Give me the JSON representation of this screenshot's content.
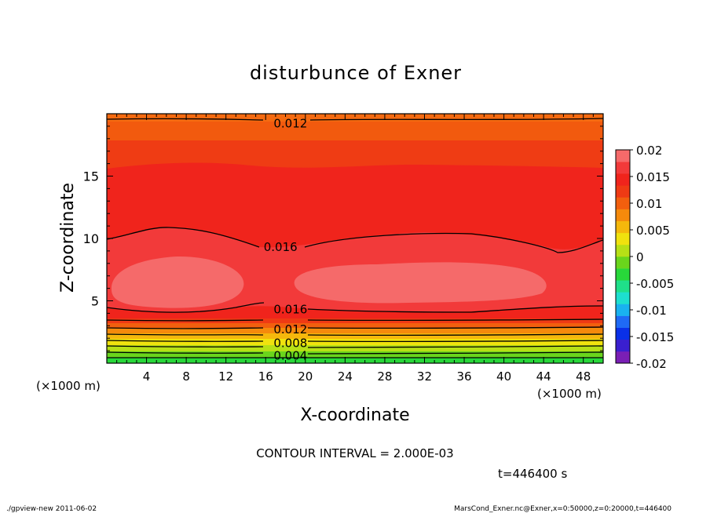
{
  "chart_data": {
    "type": "contour",
    "title": "disturbunce of Exner",
    "xlabel": "X-coordinate",
    "ylabel": "Z-coordinate",
    "x_unit_label": "(×1000 m)",
    "y_unit_label": "(×1000 m)",
    "xlim": [
      0,
      50
    ],
    "ylim": [
      0,
      20
    ],
    "x_ticks": [
      4,
      8,
      12,
      16,
      20,
      24,
      28,
      32,
      36,
      40,
      44,
      48
    ],
    "y_ticks": [
      5,
      10,
      15
    ],
    "levels": [
      0.012,
      0.016,
      0.016,
      0.012,
      0.008,
      0.004
    ],
    "contour_labels": [
      {
        "text": "0.012",
        "x": 18.5,
        "z": 19.2
      },
      {
        "text": "0.016",
        "x": 17.5,
        "z": 9.3
      },
      {
        "text": "0.016",
        "x": 18.5,
        "z": 4.3
      },
      {
        "text": "0.012",
        "x": 18.5,
        "z": 2.7
      },
      {
        "text": "0.008",
        "x": 18.5,
        "z": 1.6
      },
      {
        "text": "0.004",
        "x": 18.5,
        "z": 0.6
      }
    ],
    "colorbar": {
      "min": -0.02,
      "max": 0.02,
      "tick_labels": [
        "0.02",
        "0.015",
        "0.01",
        "0.005",
        "0",
        "-0.005",
        "-0.01",
        "-0.015",
        "-0.02"
      ],
      "colors": [
        "#7a1fb5",
        "#3a1fcf",
        "#0a30e8",
        "#1f6af5",
        "#19b2f0",
        "#1ddfcf",
        "#1fe08a",
        "#28d83a",
        "#6ad51c",
        "#b7e016",
        "#f0e20e",
        "#f5b80c",
        "#f58a0c",
        "#f25f0e",
        "#ef3a14",
        "#f0241c",
        "#f23a3a",
        "#f56a6a"
      ]
    },
    "contour_interval": "CONTOUR INTERVAL = 2.000E-03",
    "time": "t=446400 s"
  },
  "footer": {
    "left": "./gpview-new   2011-06-02",
    "right": "MarsCond_Exner.nc@Exner,x=0:50000,z=0:20000,t=446400"
  }
}
